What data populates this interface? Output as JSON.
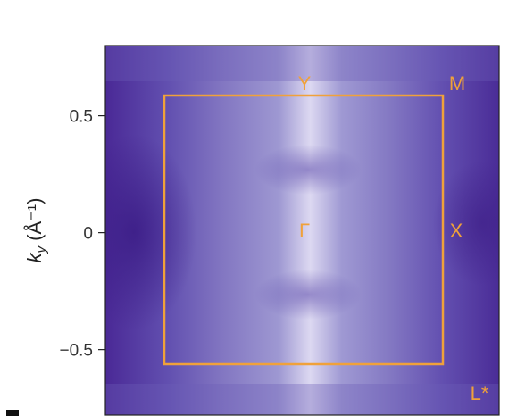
{
  "chart_data": {
    "type": "heatmap",
    "title": "",
    "xlabel": "",
    "ylabel": {
      "symbol": "k",
      "subscript": "y",
      "unit": " (Å⁻¹)"
    },
    "ylim": [
      -0.78,
      0.8
    ],
    "yticks": [
      {
        "value": 0.5,
        "label": "0.5"
      },
      {
        "value": 0,
        "label": "0"
      },
      {
        "value": -0.5,
        "label": "−0.5"
      }
    ],
    "colormap": [
      "#d8d3ee",
      "#3e1f8e"
    ],
    "brillouin_zone": {
      "color": "#f0a13a",
      "ky_top": 0.6,
      "ky_bottom": -0.57,
      "points": [
        {
          "name": "Y",
          "ky": 0.65
        },
        {
          "name": "M",
          "ky": 0.65
        },
        {
          "name": "Γ",
          "ky": 0.0
        },
        {
          "name": "X",
          "ky": 0.0
        },
        {
          "name": "L*",
          "ky": -0.7
        }
      ]
    }
  }
}
